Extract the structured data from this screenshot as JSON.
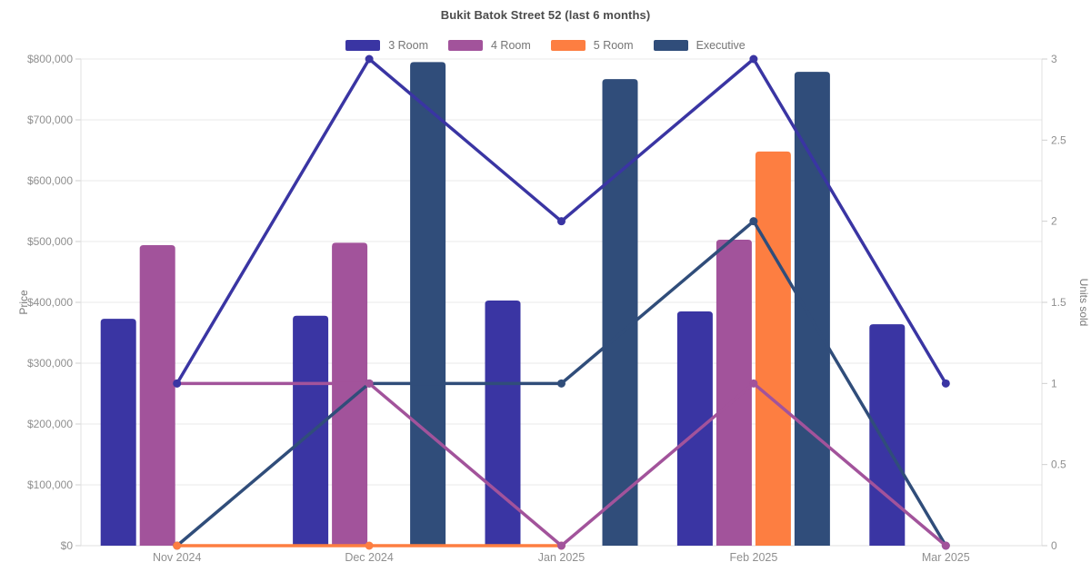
{
  "page_background": "#ffffff",
  "chart_data": {
    "type": "bar",
    "title": "Bukit Batok Street 52 (last 6 months)",
    "categories": [
      "Nov 2024",
      "Dec 2024",
      "Jan 2025",
      "Feb 2025",
      "Mar 2025"
    ],
    "legend": [
      "3 Room",
      "4 Room",
      "5 Room",
      "Executive"
    ],
    "legend_position": "top",
    "grid": "horizontal-only",
    "bar_series": [
      {
        "name": "3 Room",
        "color": "#3a35a3",
        "values": [
          373000,
          378000,
          403000,
          385000,
          364000
        ]
      },
      {
        "name": "4 Room",
        "color": "#a2539b",
        "values": [
          494000,
          498000,
          null,
          503000,
          null
        ]
      },
      {
        "name": "5 Room",
        "color": "#fd7e41",
        "values": [
          null,
          null,
          null,
          648000,
          null
        ]
      },
      {
        "name": "Executive",
        "color": "#304d7a",
        "values": [
          null,
          795000,
          767000,
          779000,
          null
        ]
      }
    ],
    "line_series": [
      {
        "name": "3 Room",
        "color": "#3a35a3",
        "values": [
          1,
          3,
          2,
          3,
          1
        ]
      },
      {
        "name": "4 Room",
        "color": "#a2539b",
        "values": [
          1,
          1,
          0,
          1,
          0
        ]
      },
      {
        "name": "5 Room",
        "color": "#fd7e41",
        "values": [
          0,
          0,
          0,
          null,
          null
        ]
      },
      {
        "name": "Executive",
        "color": "#304d7a",
        "values": [
          0,
          1,
          1,
          2,
          0
        ]
      }
    ],
    "left_axis": {
      "label": "Price",
      "min": 0,
      "max": 800000,
      "step": 100000,
      "format": "dollar",
      "tick_labels": [
        "$0",
        "$100,000",
        "$200,000",
        "$300,000",
        "$400,000",
        "$500,000",
        "$600,000",
        "$700,000",
        "$800,000"
      ]
    },
    "right_axis": {
      "label": "Units sold",
      "min": 0,
      "max": 3,
      "step": 0.5,
      "tick_labels": [
        "0",
        "0.5",
        "1",
        "1.5",
        "2",
        "2.5",
        "3"
      ]
    },
    "colors": {
      "grid": "#e8e8e8",
      "axis_border": "#e0e0e0",
      "tick_mark": "#cfcfcf",
      "tick_label": "#8f8f8f",
      "axis_title": "#7a7a7a",
      "title_text": "#4c4c4c",
      "legend_text": "#757575"
    }
  }
}
